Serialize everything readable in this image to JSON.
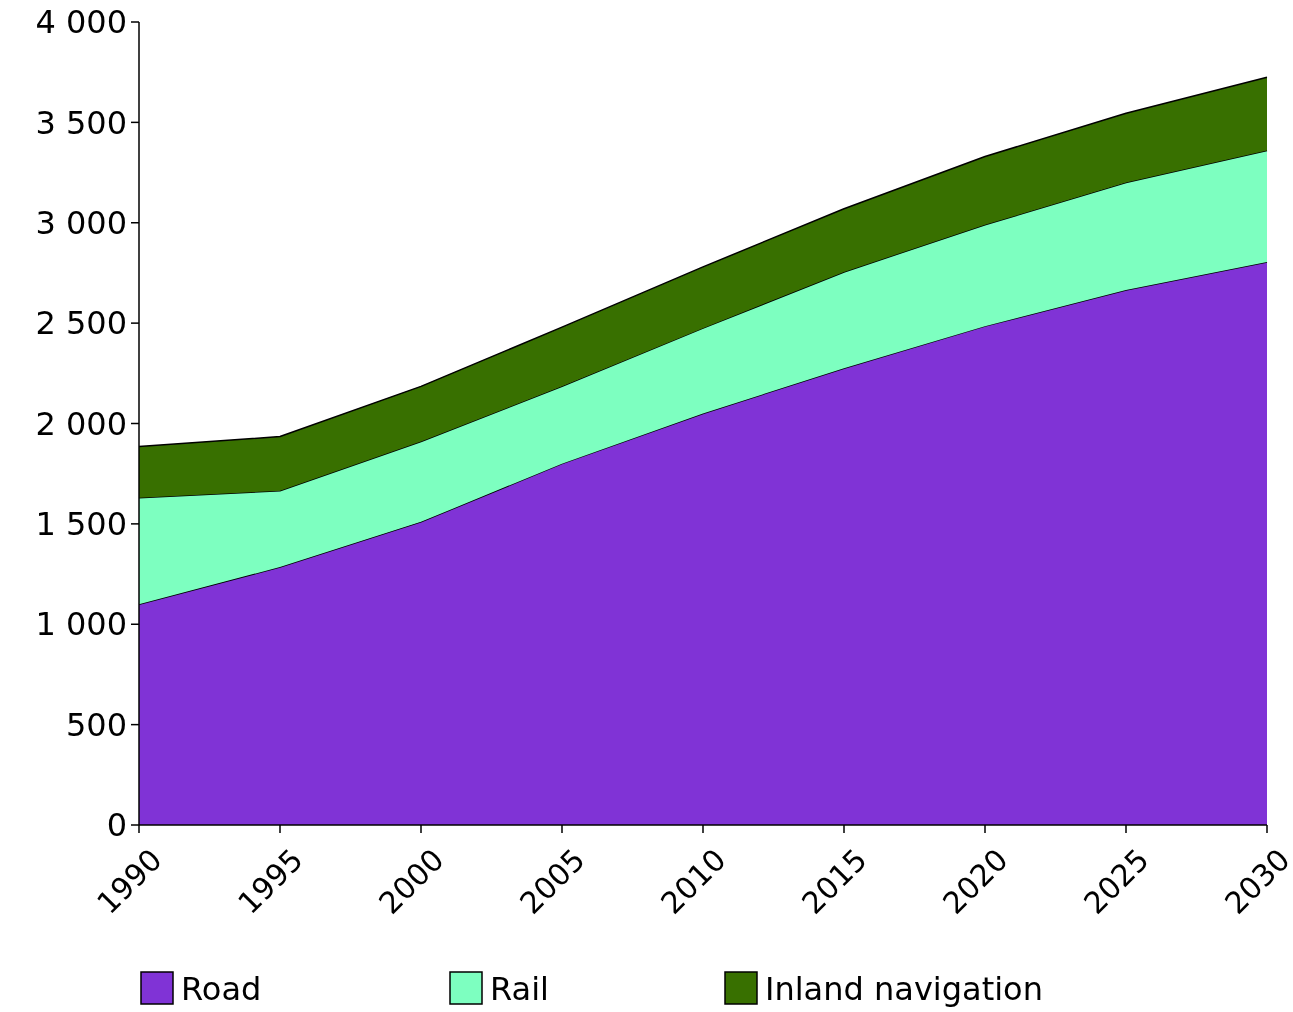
{
  "chart_data": {
    "type": "area",
    "stacked": true,
    "x": [
      1990,
      1995,
      2000,
      2005,
      2010,
      2015,
      2020,
      2025,
      2030
    ],
    "xlim": [
      1990,
      2030
    ],
    "xticks": [
      1990,
      1995,
      2000,
      2005,
      2010,
      2015,
      2020,
      2025,
      2030
    ],
    "ylim": [
      0,
      4000
    ],
    "yticks": [
      0,
      500,
      {
        "value": 1000,
        "label": "1 000"
      },
      {
        "value": 1500,
        "label": "1 500"
      },
      {
        "value": 2000,
        "label": "2 000"
      },
      {
        "value": 2500,
        "label": "2 500"
      },
      {
        "value": 3000,
        "label": "3 000"
      },
      {
        "value": 3500,
        "label": "3 500"
      },
      {
        "value": 4000,
        "label": "4 000"
      }
    ],
    "series": [
      {
        "name": "Road",
        "color": "#8033d6",
        "values": [
          1100,
          1285,
          1510,
          1800,
          2050,
          2275,
          2485,
          2665,
          2805
        ]
      },
      {
        "name": "Rail",
        "color": "#7dffc0",
        "values": [
          530,
          380,
          400,
          385,
          425,
          480,
          505,
          535,
          555
        ]
      },
      {
        "name": "Inland navigation",
        "color": "#387000",
        "values": [
          255,
          270,
          275,
          295,
          305,
          315,
          340,
          345,
          365
        ]
      }
    ],
    "grid": false,
    "legend": "bottom"
  }
}
